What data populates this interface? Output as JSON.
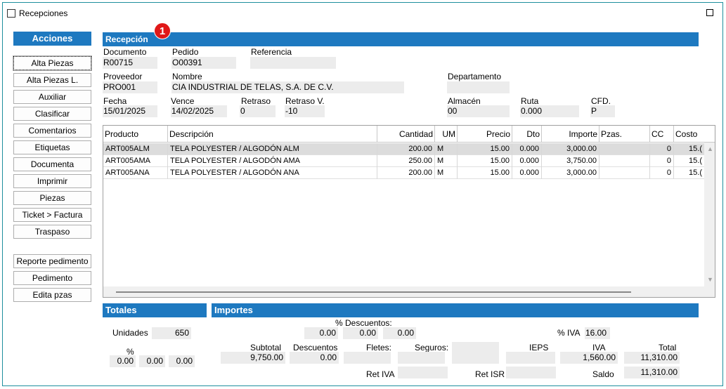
{
  "window": {
    "title": "Recepciones"
  },
  "acciones": {
    "header": "Acciones",
    "buttons": [
      "Alta Piezas",
      "Alta Piezas L.",
      "Auxiliar",
      "Clasificar",
      "Comentarios",
      "Etiquetas",
      "Documenta",
      "Imprimir",
      "Piezas",
      "Ticket > Factura",
      "Traspaso"
    ],
    "buttons2": [
      "Reporte pedimento",
      "Pedimento",
      "Edita pzas"
    ]
  },
  "badge": "1",
  "recepcion": {
    "header": "Recepción",
    "documento": {
      "label": "Documento",
      "value": "R00715"
    },
    "pedido": {
      "label": "Pedido",
      "value": "O00391"
    },
    "referencia": {
      "label": "Referencia",
      "value": ""
    },
    "proveedor": {
      "label": "Proveedor",
      "value": "PRO001"
    },
    "nombre": {
      "label": "Nombre",
      "value": "CIA INDUSTRIAL DE TELAS, S.A. DE C.V."
    },
    "departamento": {
      "label": "Departamento",
      "value": ""
    },
    "fecha": {
      "label": "Fecha",
      "value": "15/01/2025"
    },
    "vence": {
      "label": "Vence",
      "value": "14/02/2025"
    },
    "retraso": {
      "label": "Retraso",
      "value": "0"
    },
    "retraso_v": {
      "label": "Retraso V.",
      "value": "-10"
    },
    "almacen": {
      "label": "Almacén",
      "value": "00"
    },
    "ruta": {
      "label": "Ruta",
      "value": "0.000"
    },
    "cfd": {
      "label": "CFD.",
      "value": "P"
    }
  },
  "grid": {
    "columns": [
      "Producto",
      "Descripción",
      "Cantidad",
      "UM",
      "Precio",
      "Dto",
      "Importe",
      "Pzas.",
      "CC",
      "Costo"
    ],
    "rows": [
      [
        "ART005ALM",
        "TELA POLYESTER / ALGODÓN ALM",
        "200.00",
        "M",
        "15.00",
        "0.000",
        "3,000.00",
        "",
        "0",
        "15.("
      ],
      [
        "ART005AMA",
        "TELA POLYESTER / ALGODÓN AMA",
        "250.00",
        "M",
        "15.00",
        "0.000",
        "3,750.00",
        "",
        "0",
        "15.("
      ],
      [
        "ART005ANA",
        "TELA POLYESTER / ALGODÓN ANA",
        "200.00",
        "M",
        "15.00",
        "0.000",
        "3,000.00",
        "",
        "0",
        "15.("
      ]
    ]
  },
  "totales": {
    "header": "Totales",
    "unidades_label": "Unidades",
    "unidades": "650",
    "pct_label": "%",
    "pct_values": [
      "0.00",
      "0.00",
      "0.00"
    ]
  },
  "importes": {
    "header": "Importes",
    "descuentos_label": "% Descuentos:",
    "descuentos": [
      "0.00",
      "0.00",
      "0.00"
    ],
    "pct_iva_label": "% IVA",
    "pct_iva": "16.00",
    "subtotal_label": "Subtotal",
    "subtotal": "9,750.00",
    "descuentos2_label": "Descuentos",
    "descuentos2": "0.00",
    "fletes_label": "Fletes:",
    "fletes": "",
    "seguros_label": "Seguros:",
    "seguros": "",
    "ieps_label": "IEPS",
    "ieps": "",
    "iva_label": "IVA",
    "iva": "1,560.00",
    "total_label": "Total",
    "total": "11,310.00",
    "ret_iva_label": "Ret IVA",
    "ret_iva": "",
    "ret_isr_label": "Ret ISR",
    "ret_isr": "",
    "saldo_label": "Saldo",
    "saldo": "11,310.00"
  }
}
